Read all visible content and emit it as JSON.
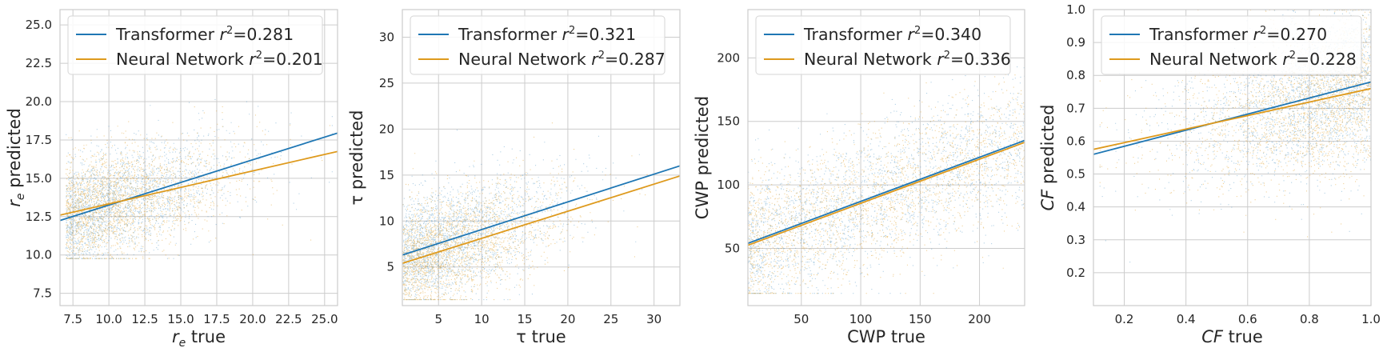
{
  "colors": {
    "transformer": "#1f77b4",
    "neural_network": "#de9a1d",
    "grid": "#cccccc"
  },
  "chart_data": [
    {
      "type": "scatter",
      "xlabel": "r_e true",
      "xlabel_base": "r",
      "xlabel_sub": "e",
      "xlabel_rest": " true",
      "ylabel": "r_e predicted",
      "ylabel_base": "r",
      "ylabel_sub": "e",
      "ylabel_rest": " predicted",
      "label_italic": true,
      "xlim": [
        6.6,
        25.9
      ],
      "ylim": [
        6.7,
        26.0
      ],
      "xticks": [
        7.5,
        10.0,
        12.5,
        15.0,
        17.5,
        20.0,
        22.5,
        25.0
      ],
      "xticklabels": [
        "7.5",
        "10.0",
        "12.5",
        "15.0",
        "17.5",
        "20.0",
        "22.5",
        "25.0"
      ],
      "yticks": [
        7.5,
        10.0,
        12.5,
        15.0,
        17.5,
        20.0,
        22.5,
        25.0
      ],
      "yticklabels": [
        "7.5",
        "10.0",
        "12.5",
        "15.0",
        "17.5",
        "20.0",
        "22.5",
        "25.0"
      ],
      "legend_position": "upper-left",
      "series": [
        {
          "name": "Transformer",
          "r2_text": "=0.281",
          "r2": 0.281,
          "fit_line": {
            "x": [
              6.6,
              25.9
            ],
            "y": [
              12.25,
              17.95
            ]
          }
        },
        {
          "name": "Neural Network",
          "r2_text": "=0.201",
          "r2": 0.201,
          "fit_line": {
            "x": [
              6.6,
              25.9
            ],
            "y": [
              12.6,
              16.75
            ]
          }
        }
      ],
      "scatter_cloud": {
        "x_range": [
          7.0,
          25.5
        ],
        "y_range": [
          9.8,
          25.0
        ]
      }
    },
    {
      "type": "scatter",
      "xlabel": "τ true",
      "xlabel_base": "τ",
      "xlabel_sub": "",
      "xlabel_rest": " true",
      "ylabel": "τ predicted",
      "ylabel_base": "τ",
      "ylabel_sub": "",
      "ylabel_rest": " predicted",
      "label_italic": false,
      "xlim": [
        0.8,
        33.0
      ],
      "ylim": [
        0.8,
        33.0
      ],
      "xticks": [
        5,
        10,
        15,
        20,
        25,
        30
      ],
      "xticklabels": [
        "5",
        "10",
        "15",
        "20",
        "25",
        "30"
      ],
      "yticks": [
        5,
        10,
        15,
        20,
        25,
        30
      ],
      "yticklabels": [
        "5",
        "10",
        "15",
        "20",
        "25",
        "30"
      ],
      "legend_position": "upper-left",
      "series": [
        {
          "name": "Transformer",
          "r2_text": "=0.321",
          "r2": 0.321,
          "fit_line": {
            "x": [
              0.8,
              33.0
            ],
            "y": [
              6.3,
              16.0
            ]
          }
        },
        {
          "name": "Neural Network",
          "r2_text": "=0.287",
          "r2": 0.287,
          "fit_line": {
            "x": [
              0.8,
              33.0
            ],
            "y": [
              5.4,
              14.9
            ]
          }
        }
      ],
      "scatter_cloud": {
        "x_range": [
          0.8,
          32.5
        ],
        "y_range": [
          1.5,
          30.0
        ]
      }
    },
    {
      "type": "scatter",
      "xlabel": "CWP true",
      "xlabel_base": "CWP",
      "xlabel_sub": "",
      "xlabel_rest": " true",
      "ylabel": "CWP predicted",
      "ylabel_base": "CWP",
      "ylabel_sub": "",
      "ylabel_rest": " predicted",
      "label_italic": false,
      "xlim": [
        5,
        238
      ],
      "ylim": [
        5,
        238
      ],
      "xticks": [
        50,
        100,
        150,
        200
      ],
      "xticklabels": [
        "50",
        "100",
        "150",
        "200"
      ],
      "yticks": [
        50,
        100,
        150,
        200
      ],
      "yticklabels": [
        "50",
        "100",
        "150",
        "200"
      ],
      "legend_position": "upper-left",
      "series": [
        {
          "name": "Transformer",
          "r2_text": "=0.340",
          "r2": 0.34,
          "fit_line": {
            "x": [
              5,
              238
            ],
            "y": [
              54.0,
              135.0
            ]
          }
        },
        {
          "name": "Neural Network",
          "r2_text": "=0.336",
          "r2": 0.336,
          "fit_line": {
            "x": [
              5,
              238
            ],
            "y": [
              52.5,
              133.5
            ]
          }
        }
      ],
      "scatter_cloud": {
        "x_range": [
          5,
          238
        ],
        "y_range": [
          15,
          215
        ]
      }
    },
    {
      "type": "scatter",
      "xlabel": "CF true",
      "xlabel_base": "CF",
      "xlabel_sub": "",
      "xlabel_rest": " true",
      "ylabel": "CF predicted",
      "ylabel_base": "CF",
      "ylabel_sub": "",
      "ylabel_rest": " predicted",
      "label_italic": true,
      "xlim": [
        0.1,
        1.0
      ],
      "ylim": [
        0.1,
        1.0
      ],
      "xticks": [
        0.2,
        0.4,
        0.6,
        0.8,
        1.0
      ],
      "xticklabels": [
        "0.2",
        "0.4",
        "0.6",
        "0.8",
        "1.0"
      ],
      "yticks": [
        0.2,
        0.3,
        0.4,
        0.5,
        0.6,
        0.7,
        0.8,
        0.9,
        1.0
      ],
      "yticklabels": [
        "0.2",
        "0.3",
        "0.4",
        "0.5",
        "0.6",
        "0.7",
        "0.8",
        "0.9",
        "1.0"
      ],
      "legend_position": "upper-left",
      "series": [
        {
          "name": "Transformer",
          "r2_text": "=0.270",
          "r2": 0.27,
          "fit_line": {
            "x": [
              0.1,
              1.0
            ],
            "y": [
              0.56,
              0.78
            ]
          }
        },
        {
          "name": "Neural Network",
          "r2_text": "=0.228",
          "r2": 0.228,
          "fit_line": {
            "x": [
              0.1,
              1.0
            ],
            "y": [
              0.575,
              0.76
            ]
          }
        }
      ],
      "scatter_cloud": {
        "x_range": [
          0.12,
          1.0
        ],
        "y_range": [
          0.15,
          1.0
        ]
      }
    }
  ]
}
